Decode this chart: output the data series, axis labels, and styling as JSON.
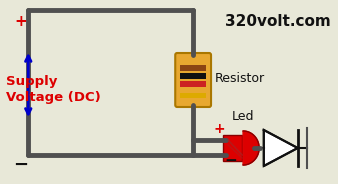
{
  "bg_color": "#e8e8d8",
  "wire_color": "#505050",
  "wire_lw": 3.5,
  "plus_color": "#dd0000",
  "minus_color": "#111111",
  "arrow_color": "#0000cc",
  "supply_label": "Supply\nVoltage (DC)",
  "supply_color": "#dd0000",
  "resistor_label": "Resistor",
  "led_label": "Led",
  "brand_label": "320volt.com",
  "brand_color": "#111111",
  "resistor_body_color": "#e8a830",
  "resistor_band1": "#8B4513",
  "resistor_band2": "#111111",
  "resistor_band3": "#cc2222",
  "resistor_band4": "#ddaa00",
  "led_body_color": "#dd0000",
  "diode_color": "#111111"
}
